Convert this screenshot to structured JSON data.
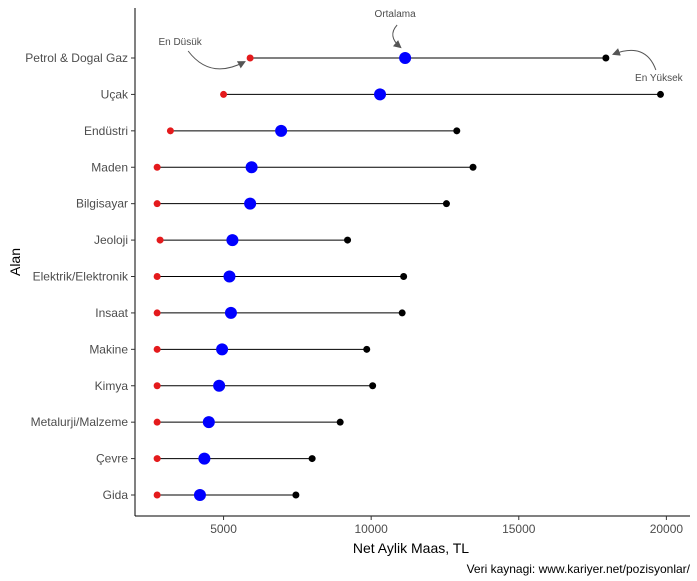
{
  "chart_data": {
    "type": "dumbbell",
    "xlabel": "Net Aylik Maas, TL",
    "ylabel": "Alan",
    "caption": "Veri kaynagi: www.kariyer.net/pozisyonlar/",
    "xlim": [
      2000,
      20800
    ],
    "xticks": [
      5000,
      10000,
      15000,
      20000
    ],
    "categories": [
      "Petrol & Dogal Gaz",
      "Uçak",
      "Endüstri",
      "Maden",
      "Bilgisayar",
      "Jeoloji",
      "Elektrik/Elektronik",
      "Insaat",
      "Makine",
      "Kimya",
      "Metalurji/Malzeme",
      "Çevre",
      "Gida"
    ],
    "series": [
      {
        "name": "En Düsük",
        "color": "#e41a1c",
        "values": [
          5900,
          5000,
          3200,
          2750,
          2750,
          2850,
          2750,
          2750,
          2750,
          2750,
          2750,
          2750,
          2750
        ]
      },
      {
        "name": "Ortalama",
        "color": "#0000ff",
        "values": [
          11150,
          10300,
          6950,
          5950,
          5900,
          5300,
          5200,
          5250,
          4950,
          4850,
          4500,
          4350,
          4200
        ]
      },
      {
        "name": "En Yüksek",
        "color": "#000000",
        "values": [
          17950,
          19800,
          12900,
          13450,
          12550,
          9200,
          11100,
          11050,
          9850,
          10050,
          8950,
          8000,
          7450
        ]
      }
    ],
    "annotations": [
      {
        "text": "Ortalama",
        "target_series": "Ortalama",
        "target_category": "Petrol & Dogal Gaz"
      },
      {
        "text": "En Düsük",
        "target_series": "En Düsük",
        "target_category": "Petrol & Dogal Gaz"
      },
      {
        "text": "En Yüksek",
        "target_series": "En Yüksek",
        "target_category": "Petrol & Dogal Gaz"
      }
    ]
  }
}
